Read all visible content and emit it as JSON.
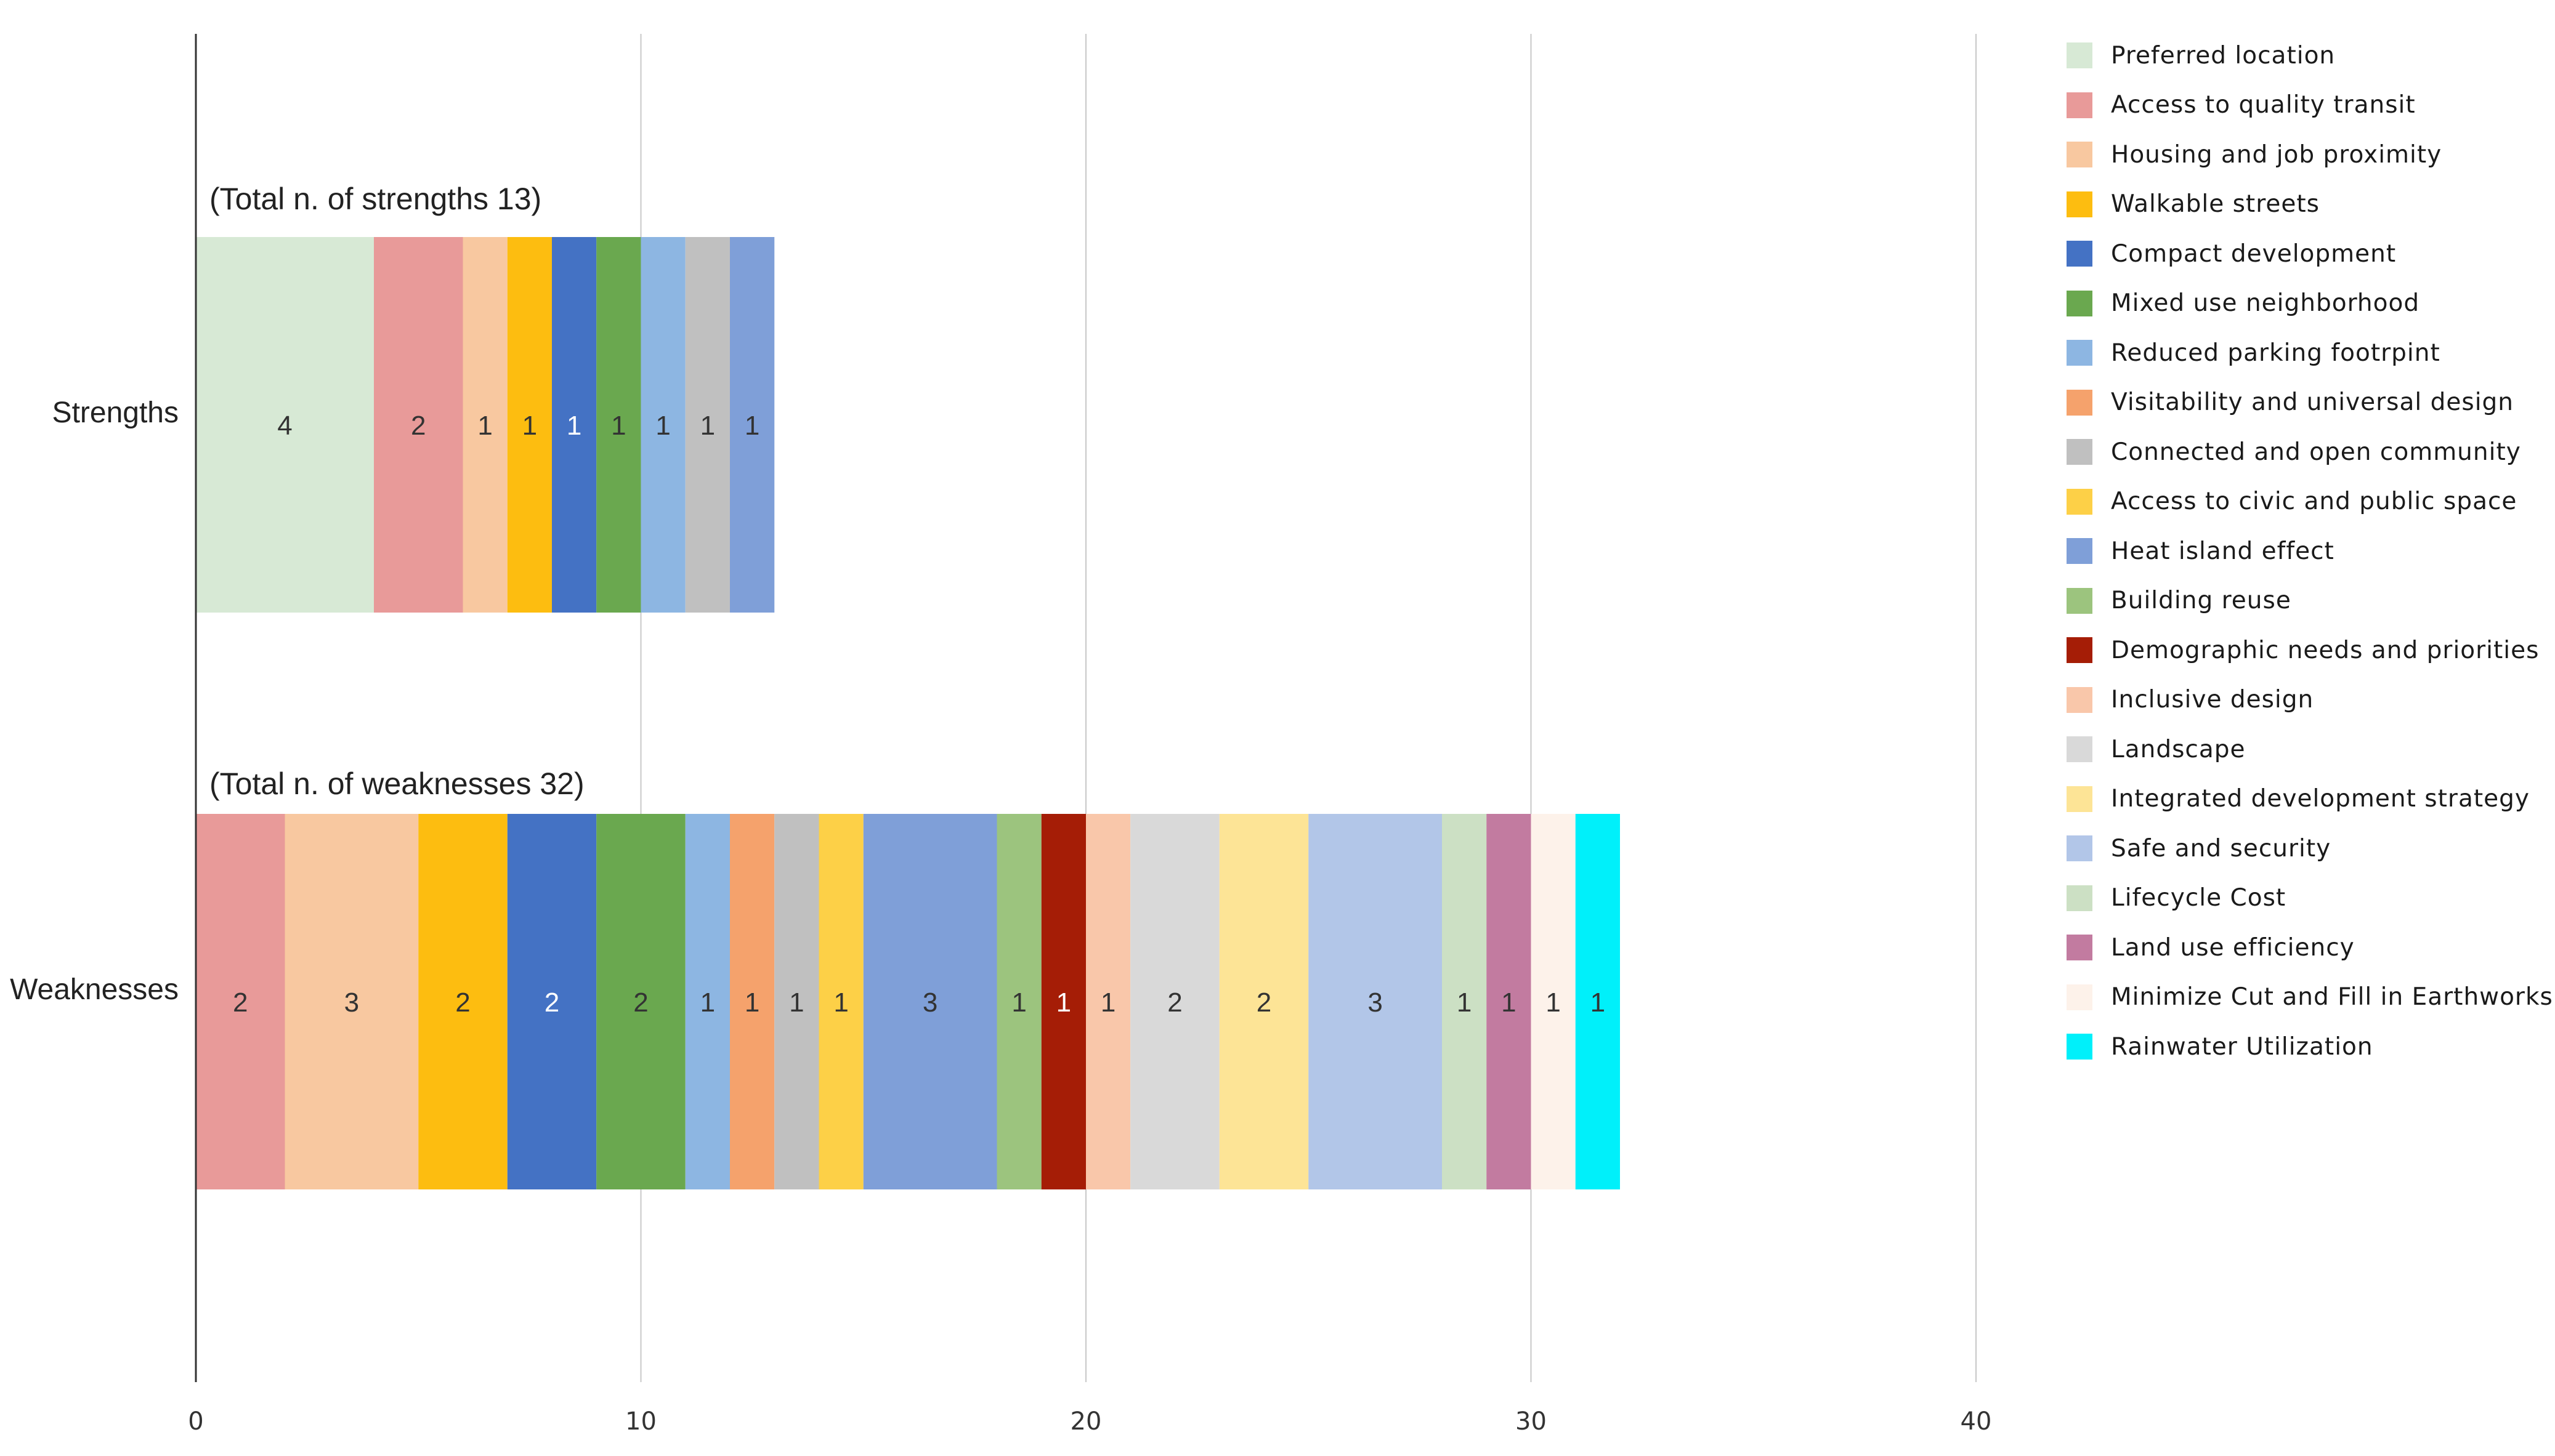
{
  "chart_data": {
    "type": "bar",
    "orientation": "horizontal",
    "stacked": true,
    "xlim": [
      0,
      40
    ],
    "xticks": [
      0,
      10,
      20,
      30,
      40
    ],
    "grid": true,
    "legend_position": "right",
    "categories": [
      {
        "label": "Strengths",
        "annotation": "(Total n. of strengths 13)",
        "segments": [
          {
            "category": "Preferred location",
            "value": 4
          },
          {
            "category": "Access to quality transit",
            "value": 2
          },
          {
            "category": "Housing and job proximity",
            "value": 1
          },
          {
            "category": "Walkable streets",
            "value": 1
          },
          {
            "category": "Compact development",
            "value": 1
          },
          {
            "category": "Mixed use neighborhood",
            "value": 1
          },
          {
            "category": "Reduced parking footrpint",
            "value": 1
          },
          {
            "category": "Connected and open community",
            "value": 1
          },
          {
            "category": "Heat island effect",
            "value": 1
          }
        ]
      },
      {
        "label": "Weaknesses",
        "annotation": "(Total n. of weaknesses 32)",
        "segments": [
          {
            "category": "Access to quality transit",
            "value": 2
          },
          {
            "category": "Housing and job proximity",
            "value": 3
          },
          {
            "category": "Walkable streets",
            "value": 2
          },
          {
            "category": "Compact development",
            "value": 2
          },
          {
            "category": "Mixed use neighborhood",
            "value": 2
          },
          {
            "category": "Reduced parking footrpint",
            "value": 1
          },
          {
            "category": "Visitability and universal design",
            "value": 1
          },
          {
            "category": "Connected and open community",
            "value": 1
          },
          {
            "category": "Access to civic and public space",
            "value": 1
          },
          {
            "category": "Heat island effect",
            "value": 3
          },
          {
            "category": "Building reuse",
            "value": 1
          },
          {
            "category": "Demographic needs and priorities",
            "value": 1
          },
          {
            "category": "Inclusive design",
            "value": 1
          },
          {
            "category": "Landscape",
            "value": 2
          },
          {
            "category": "Integrated development strategy",
            "value": 2
          },
          {
            "category": "Safe and security",
            "value": 3
          },
          {
            "category": "Lifecycle Cost",
            "value": 1
          },
          {
            "category": "Land use efficiency",
            "value": 1
          },
          {
            "category": "Minimize Cut and Fill in Earthworks",
            "value": 1
          },
          {
            "category": "Rainwater Utilization",
            "value": 1
          }
        ]
      }
    ],
    "legend": [
      {
        "name": "Preferred location",
        "color": "#d7e9d5",
        "label_color": "#333333"
      },
      {
        "name": "Access to quality transit",
        "color": "#e89a99",
        "label_color": "#333333"
      },
      {
        "name": "Housing and job proximity",
        "color": "#f8c8a0",
        "label_color": "#333333"
      },
      {
        "name": "Walkable streets",
        "color": "#fdbd10",
        "label_color": "#333333"
      },
      {
        "name": "Compact development",
        "color": "#4472c4",
        "label_color": "#ffffff"
      },
      {
        "name": "Mixed use neighborhood",
        "color": "#6aa84f",
        "label_color": "#333333"
      },
      {
        "name": "Reduced parking footrpint",
        "color": "#8db6e2",
        "label_color": "#333333"
      },
      {
        "name": "Visitability and universal design",
        "color": "#f5a26c",
        "label_color": "#333333"
      },
      {
        "name": "Connected and open community",
        "color": "#c0c0c0",
        "label_color": "#333333"
      },
      {
        "name": "Access to civic and public space",
        "color": "#fdd047",
        "label_color": "#333333"
      },
      {
        "name": "Heat island effect",
        "color": "#7f9fd8",
        "label_color": "#333333"
      },
      {
        "name": "Building reuse",
        "color": "#9cc47e",
        "label_color": "#333333"
      },
      {
        "name": "Demographic needs and priorities",
        "color": "#a51d06",
        "label_color": "#ffffff"
      },
      {
        "name": "Inclusive design",
        "color": "#f9c7aa",
        "label_color": "#333333"
      },
      {
        "name": "Landscape",
        "color": "#d9d9d9",
        "label_color": "#333333"
      },
      {
        "name": "Integrated development strategy",
        "color": "#fde496",
        "label_color": "#333333"
      },
      {
        "name": "Safe and security",
        "color": "#b2c6e8",
        "label_color": "#333333"
      },
      {
        "name": "Lifecycle Cost",
        "color": "#cce0c4",
        "label_color": "#333333"
      },
      {
        "name": "Land use efficiency",
        "color": "#c27ba0",
        "label_color": "#333333"
      },
      {
        "name": "Minimize Cut and Fill in Earthworks",
        "color": "#fdf2ea",
        "label_color": "#333333"
      },
      {
        "name": "Rainwater Utilization",
        "color": "#00f0fa",
        "label_color": "#333333"
      }
    ]
  }
}
